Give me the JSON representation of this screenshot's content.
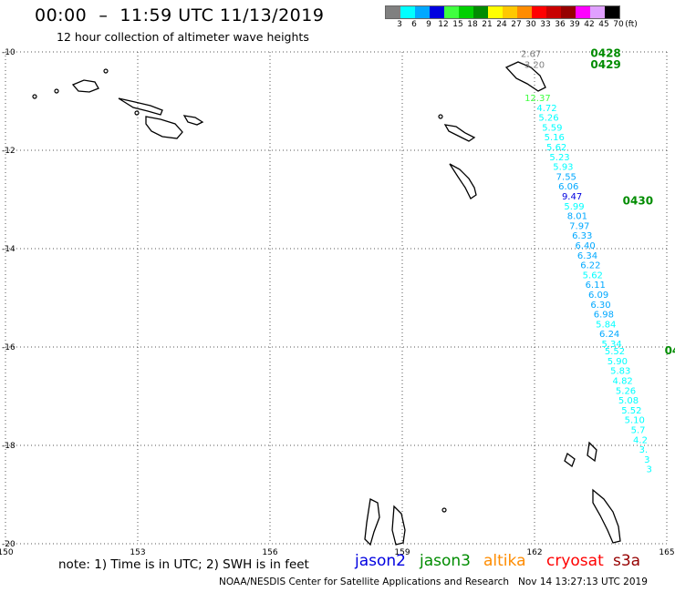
{
  "header": {
    "title": "00:00  –  11:59 UTC 11/13/2019",
    "subtitle": "12 hour collection of altimeter wave heights"
  },
  "legend": {
    "unit": "(ft)",
    "bins": [
      {
        "label": "3",
        "color": "#808080"
      },
      {
        "label": "6",
        "color": "#00ffff"
      },
      {
        "label": "9",
        "color": "#00a8ff"
      },
      {
        "label": "12",
        "color": "#0000e0"
      },
      {
        "label": "15",
        "color": "#40ff40"
      },
      {
        "label": "18",
        "color": "#00d000"
      },
      {
        "label": "21",
        "color": "#008c00"
      },
      {
        "label": "24",
        "color": "#ffff00"
      },
      {
        "label": "27",
        "color": "#ffc800"
      },
      {
        "label": "30",
        "color": "#ff8c00"
      },
      {
        "label": "33",
        "color": "#ff0000"
      },
      {
        "label": "36",
        "color": "#c80000"
      },
      {
        "label": "39",
        "color": "#960000"
      },
      {
        "label": "42",
        "color": "#ff00ff"
      },
      {
        "label": "45",
        "color": "#e0a0ff"
      },
      {
        "label": "70",
        "color": "#000000"
      }
    ]
  },
  "map": {
    "lon_range": [
      150,
      165
    ],
    "lat_range": [
      -20,
      -10
    ],
    "lon_ticks": [
      "150",
      "153",
      "156",
      "159",
      "162",
      "165"
    ],
    "lat_ticks": [
      "-10",
      "-12",
      "-14",
      "-16",
      "-18",
      "-20"
    ],
    "grid": "dotted",
    "times": [
      {
        "text": "0428",
        "lon": 163.27,
        "lat": -10.1,
        "color": "#008c00"
      },
      {
        "text": "0429",
        "lon": 163.27,
        "lat": -10.33,
        "color": "#008c00"
      },
      {
        "text": "0430",
        "lon": 164.0,
        "lat": -13.1,
        "color": "#008c00"
      },
      {
        "text": "04",
        "lon": 164.95,
        "lat": -16.15,
        "color": "#008c00"
      }
    ],
    "observations": [
      {
        "v": "2.67",
        "lon": 161.92,
        "lat": -10.1,
        "color": "#808080"
      },
      {
        "v": "3.20",
        "lon": 162.0,
        "lat": -10.32,
        "color": "#808080"
      },
      {
        "v": "12.37",
        "lon": 162.07,
        "lat": -11.0,
        "color": "#40ff40"
      },
      {
        "v": "4.72",
        "lon": 162.28,
        "lat": -11.2,
        "color": "#00ffff"
      },
      {
        "v": "5.26",
        "lon": 162.32,
        "lat": -11.4,
        "color": "#00ffff"
      },
      {
        "v": "5.59",
        "lon": 162.4,
        "lat": -11.6,
        "color": "#00ffff"
      },
      {
        "v": "5.16",
        "lon": 162.45,
        "lat": -11.8,
        "color": "#00ffff"
      },
      {
        "v": "5.62",
        "lon": 162.5,
        "lat": -12.0,
        "color": "#00ffff"
      },
      {
        "v": "5.23",
        "lon": 162.57,
        "lat": -12.2,
        "color": "#00ffff"
      },
      {
        "v": "5.93",
        "lon": 162.65,
        "lat": -12.4,
        "color": "#00ffff"
      },
      {
        "v": "7.55",
        "lon": 162.72,
        "lat": -12.6,
        "color": "#00a8ff"
      },
      {
        "v": "6.06",
        "lon": 162.77,
        "lat": -12.8,
        "color": "#00a8ff"
      },
      {
        "v": "9.47",
        "lon": 162.85,
        "lat": -13.0,
        "color": "#0000e0"
      },
      {
        "v": "5.99",
        "lon": 162.9,
        "lat": -13.2,
        "color": "#00ffff"
      },
      {
        "v": "8.01",
        "lon": 162.97,
        "lat": -13.4,
        "color": "#00a8ff"
      },
      {
        "v": "7.97",
        "lon": 163.02,
        "lat": -13.6,
        "color": "#00a8ff"
      },
      {
        "v": "6.33",
        "lon": 163.08,
        "lat": -13.8,
        "color": "#00a8ff"
      },
      {
        "v": "6.40",
        "lon": 163.15,
        "lat": -14.0,
        "color": "#00a8ff"
      },
      {
        "v": "6.34",
        "lon": 163.2,
        "lat": -14.2,
        "color": "#00a8ff"
      },
      {
        "v": "6.22",
        "lon": 163.27,
        "lat": -14.4,
        "color": "#00a8ff"
      },
      {
        "v": "5.62",
        "lon": 163.32,
        "lat": -14.6,
        "color": "#00ffff"
      },
      {
        "v": "6.11",
        "lon": 163.38,
        "lat": -14.8,
        "color": "#00a8ff"
      },
      {
        "v": "6.09",
        "lon": 163.45,
        "lat": -15.0,
        "color": "#00a8ff"
      },
      {
        "v": "6.30",
        "lon": 163.5,
        "lat": -15.2,
        "color": "#00a8ff"
      },
      {
        "v": "6.98",
        "lon": 163.57,
        "lat": -15.4,
        "color": "#00a8ff"
      },
      {
        "v": "5.84",
        "lon": 163.62,
        "lat": -15.6,
        "color": "#00ffff"
      },
      {
        "v": "6.24",
        "lon": 163.7,
        "lat": -15.8,
        "color": "#00a8ff"
      },
      {
        "v": "5.34",
        "lon": 163.75,
        "lat": -16.0,
        "color": "#00ffff"
      },
      {
        "v": "5.52",
        "lon": 163.82,
        "lat": -16.15,
        "color": "#00ffff"
      },
      {
        "v": "5.90",
        "lon": 163.88,
        "lat": -16.35,
        "color": "#00ffff"
      },
      {
        "v": "5.83",
        "lon": 163.95,
        "lat": -16.55,
        "color": "#00ffff"
      },
      {
        "v": "4.82",
        "lon": 164.0,
        "lat": -16.75,
        "color": "#00ffff"
      },
      {
        "v": "5.26",
        "lon": 164.07,
        "lat": -16.95,
        "color": "#00ffff"
      },
      {
        "v": "5.08",
        "lon": 164.13,
        "lat": -17.15,
        "color": "#00ffff"
      },
      {
        "v": "5.52",
        "lon": 164.2,
        "lat": -17.35,
        "color": "#00ffff"
      },
      {
        "v": "5.10",
        "lon": 164.27,
        "lat": -17.55,
        "color": "#00ffff"
      },
      {
        "v": "5.7",
        "lon": 164.35,
        "lat": -17.75,
        "color": "#00ffff"
      },
      {
        "v": "4.2",
        "lon": 164.4,
        "lat": -17.95,
        "color": "#00ffff"
      },
      {
        "v": "3.",
        "lon": 164.47,
        "lat": -18.15,
        "color": "#00ffff"
      },
      {
        "v": "3",
        "lon": 164.55,
        "lat": -18.35,
        "color": "#00ffff"
      },
      {
        "v": "3",
        "lon": 164.6,
        "lat": -18.55,
        "color": "#00ffff"
      }
    ]
  },
  "footer": {
    "note": "note:  1) Time is in UTC;  2) SWH is in feet",
    "satellites": [
      {
        "name": "jason2",
        "color": "#0000e0"
      },
      {
        "name": "jason3",
        "color": "#008c00"
      },
      {
        "name": "altika",
        "color": "#ff8c00"
      },
      {
        "name": "cryosat",
        "color": "#ff0000"
      },
      {
        "name": "s3a",
        "color": "#960000"
      }
    ],
    "credit": "NOAA/NESDIS Center for Satellite Applications and Research   Nov 14 13:27:13 UTC 2019"
  }
}
